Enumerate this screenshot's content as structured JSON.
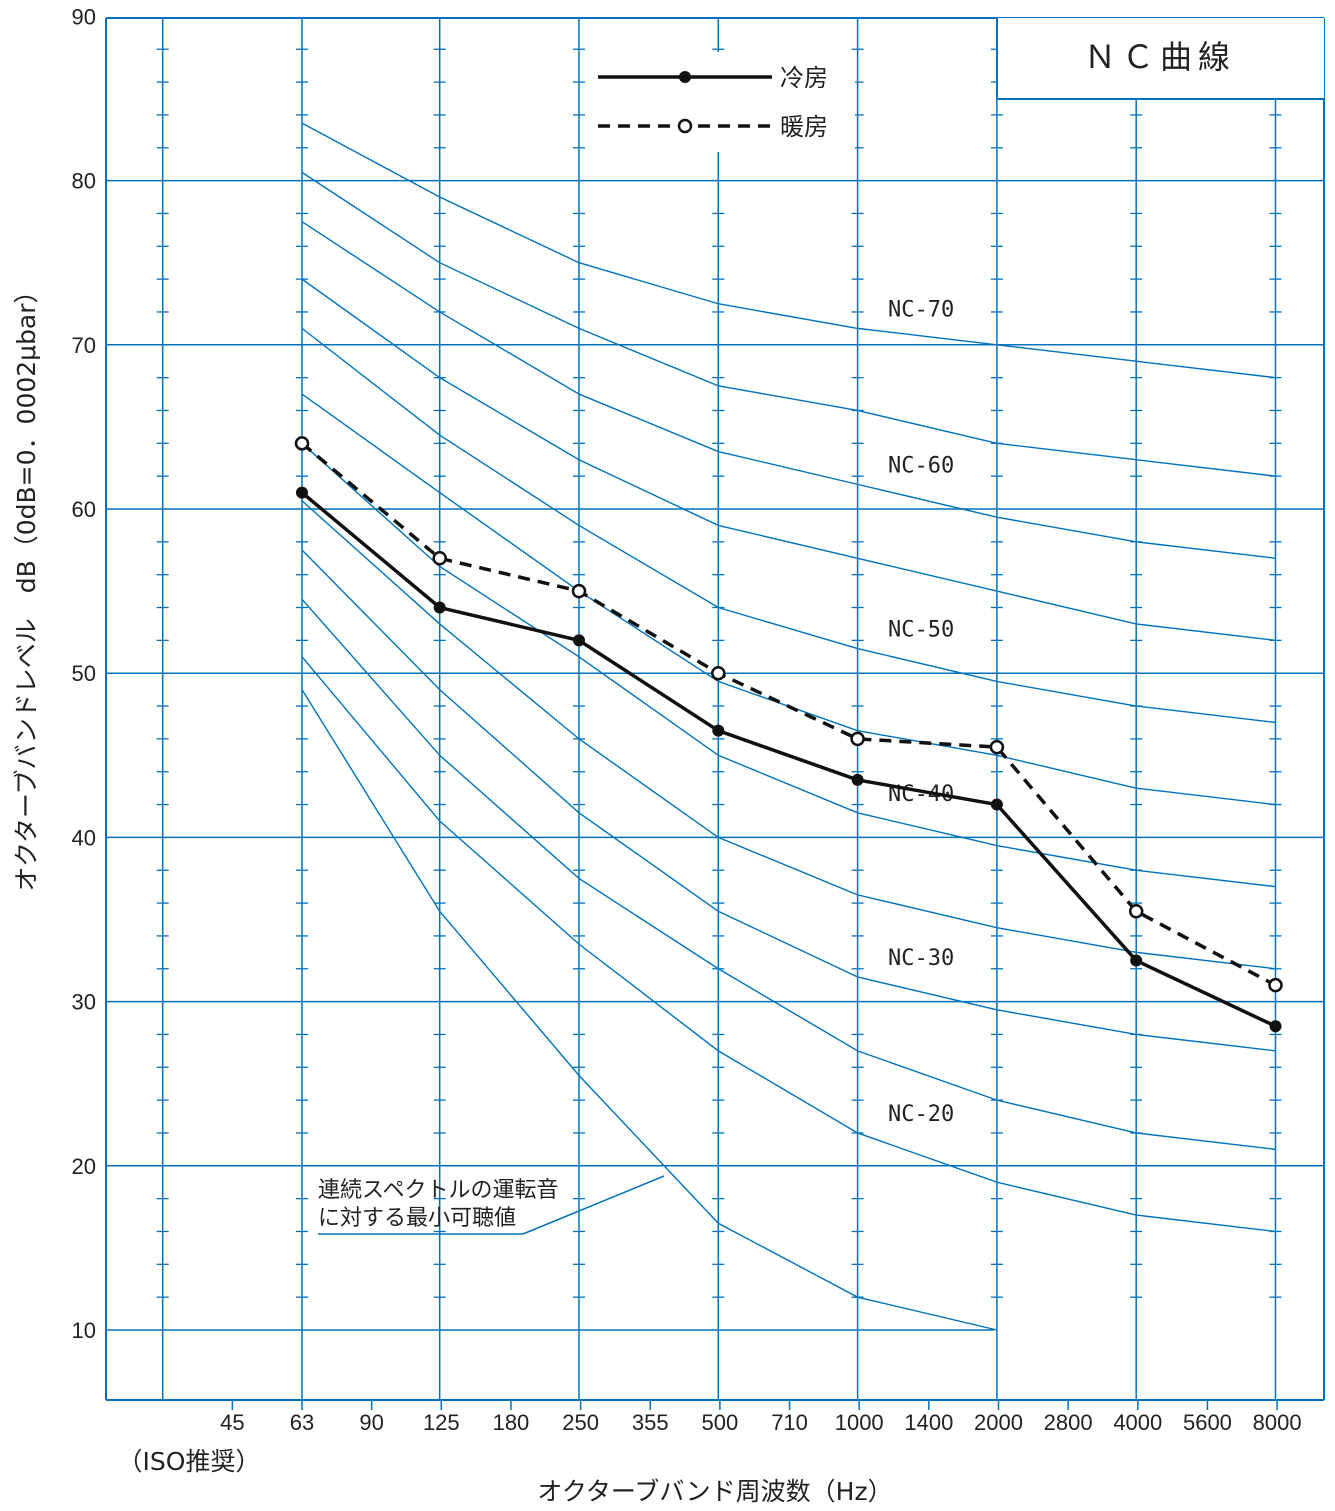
{
  "chart_data": {
    "type": "line",
    "title": "ＮＣ曲線",
    "xlabel": "オクターブバンド周波数（Hz）",
    "ylabel": "オクターブバンドレベル　dB（0dB=0．0002μbar）",
    "ylim": [
      10,
      90
    ],
    "yticks": [
      "10",
      "20",
      "30",
      "40",
      "50",
      "60",
      "70",
      "80",
      "90"
    ],
    "x_tick_labels": [
      "45",
      "63",
      "90",
      "125",
      "180",
      "250",
      "355",
      "500",
      "710",
      "1000",
      "1400",
      "2000",
      "2800",
      "4000",
      "5600",
      "8000"
    ],
    "x_note": "（ISO推奨）",
    "grid": true,
    "legend_position": "top-center",
    "nc_curve_x": [
      63,
      125,
      250,
      500,
      1000,
      2000,
      4000,
      8000
    ],
    "nc_curves": [
      {
        "label": "NC-70",
        "values": [
          83.5,
          79,
          75,
          72.5,
          71,
          70,
          69,
          68
        ]
      },
      {
        "label": "",
        "values": [
          80.5,
          75,
          71,
          67.5,
          66,
          64,
          63,
          62
        ]
      },
      {
        "label": "NC-60",
        "values": [
          77.5,
          72,
          67,
          63.5,
          61.5,
          59.5,
          58,
          57
        ]
      },
      {
        "label": "",
        "values": [
          74,
          68,
          63,
          59,
          57,
          55,
          53,
          52
        ]
      },
      {
        "label": "NC-50",
        "values": [
          71,
          64.5,
          59,
          54,
          51.5,
          49.5,
          48,
          47
        ]
      },
      {
        "label": "",
        "values": [
          67,
          61,
          55,
          49.5,
          46.5,
          45,
          43,
          42
        ]
      },
      {
        "label": "NC-40",
        "values": [
          64,
          56.5,
          51,
          45,
          41.5,
          39.5,
          38,
          37
        ]
      },
      {
        "label": "",
        "values": [
          60.5,
          53,
          46,
          40,
          36.5,
          34.5,
          33,
          32
        ]
      },
      {
        "label": "NC-30",
        "values": [
          57.5,
          49,
          41.5,
          35.5,
          31.5,
          29.5,
          28,
          27
        ]
      },
      {
        "label": "",
        "values": [
          54.5,
          45,
          37.5,
          32,
          27,
          24,
          22,
          21
        ]
      },
      {
        "label": "NC-20",
        "values": [
          51,
          41,
          33.5,
          27,
          22,
          19,
          17,
          16
        ]
      }
    ],
    "threshold_curve": {
      "label": "連続スペクトルの運転音に対する最小可聴値",
      "x": [
        63,
        125,
        250,
        500,
        1000,
        2000
      ],
      "values": [
        49,
        35.5,
        25.5,
        16.5,
        12,
        10
      ]
    },
    "series": [
      {
        "name": "冷房",
        "style": "solid",
        "x": [
          63,
          125,
          250,
          500,
          1000,
          2000,
          4000,
          8000
        ],
        "values": [
          61,
          54,
          52,
          46.5,
          43.5,
          42,
          32.5,
          28.5
        ]
      },
      {
        "name": "暖房",
        "style": "dashed",
        "x": [
          63,
          125,
          250,
          500,
          1000,
          2000,
          4000,
          8000
        ],
        "values": [
          64,
          57,
          55,
          50,
          46,
          45.5,
          35.5,
          31
        ]
      }
    ],
    "colors": {
      "grid": "#0072bc",
      "curves": "#0072bc",
      "series": "#111111"
    }
  }
}
